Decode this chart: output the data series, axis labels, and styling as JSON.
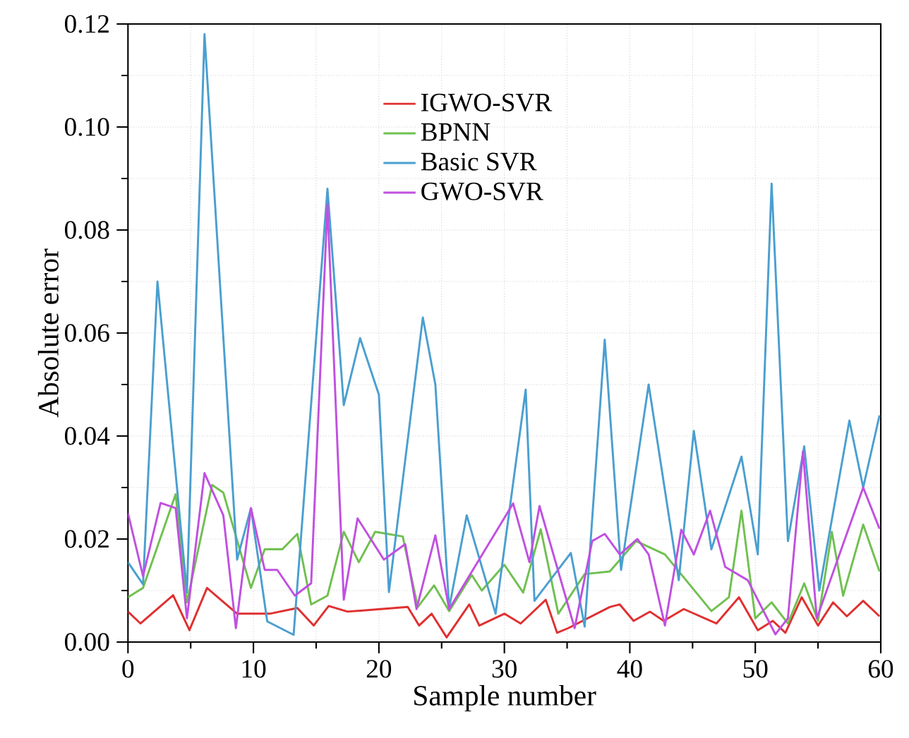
{
  "chart_data": {
    "type": "line",
    "xlabel": "Sample number",
    "ylabel": "Absolute error",
    "xlim": [
      0,
      60
    ],
    "xticks": [
      0,
      10,
      20,
      30,
      40,
      50,
      60
    ],
    "ylim": [
      0,
      0.12
    ],
    "yticks": [
      {
        "value": 0,
        "label": "0.00"
      },
      {
        "value": 0.02,
        "label": "0.02"
      },
      {
        "value": 0.04,
        "label": "0.04"
      },
      {
        "value": 0.06,
        "label": "0.06"
      },
      {
        "value": 0.08,
        "label": "0.08"
      },
      {
        "value": 0.1,
        "label": "0.10"
      },
      {
        "value": 0.12,
        "label": "0.12"
      }
    ],
    "grid": true,
    "legend": "top",
    "marker": "none",
    "line_style": "solid",
    "series": [
      {
        "name": "IGWO-SVR",
        "color": "#e03030",
        "x": [
          0,
          1.0,
          3.6,
          4.9,
          6.3,
          8.7,
          11.3,
          13.5,
          14.8,
          16.0,
          17.5,
          22.3,
          23.2,
          24.2,
          25.4,
          27.2,
          28.0,
          30.0,
          31.3,
          33.3,
          34.2,
          35.1,
          38.4,
          39.2,
          40.3,
          41.6,
          42.7,
          44.3,
          46.9,
          48.7,
          50.2,
          51.4,
          52.4,
          53.7,
          55.0,
          56.2,
          57.3,
          58.6,
          59.9
        ],
        "values": [
          0.0059,
          0.0036,
          0.0091,
          0.0023,
          0.0105,
          0.0055,
          0.0055,
          0.0066,
          0.0032,
          0.007,
          0.0059,
          0.0068,
          0.0032,
          0.0055,
          0.0009,
          0.0073,
          0.0032,
          0.0055,
          0.0036,
          0.0082,
          0.0018,
          0.0027,
          0.0068,
          0.0073,
          0.0041,
          0.0059,
          0.0041,
          0.0064,
          0.0036,
          0.0087,
          0.0023,
          0.0041,
          0.0018,
          0.0087,
          0.0032,
          0.0077,
          0.005,
          0.008,
          0.005
        ]
      },
      {
        "name": "BPNN",
        "color": "#70c050",
        "x": [
          0,
          1.2,
          3.8,
          4.7,
          6.7,
          7.6,
          9.8,
          10.9,
          12.3,
          13.5,
          14.6,
          15.9,
          17.2,
          18.4,
          19.7,
          21.9,
          23.1,
          24.4,
          25.6,
          27.4,
          28.2,
          30.0,
          31.5,
          32.9,
          34.3,
          36.4,
          38.4,
          40.5,
          42.8,
          46.5,
          47.9,
          48.9,
          50.0,
          51.3,
          52.6,
          53.9,
          55.0,
          56.1,
          57.0,
          58.6,
          59.9
        ],
        "values": [
          0.0087,
          0.0105,
          0.0287,
          0.0077,
          0.0305,
          0.029,
          0.0105,
          0.018,
          0.018,
          0.021,
          0.0073,
          0.009,
          0.0214,
          0.0155,
          0.0214,
          0.0205,
          0.0068,
          0.011,
          0.006,
          0.013,
          0.01,
          0.015,
          0.0096,
          0.0219,
          0.0055,
          0.0132,
          0.0137,
          0.0196,
          0.017,
          0.006,
          0.0087,
          0.0255,
          0.0046,
          0.0077,
          0.0036,
          0.0114,
          0.0041,
          0.0214,
          0.009,
          0.0228,
          0.0137
        ]
      },
      {
        "name": "Basic SVR",
        "color": "#4a9fd0",
        "x": [
          0,
          1.2,
          2.35,
          4.7,
          6.1,
          8.7,
          9.8,
          11.1,
          13.2,
          15.9,
          17.2,
          18.5,
          20.0,
          20.8,
          23.5,
          24.5,
          25.6,
          27.0,
          29.3,
          31.7,
          32.4,
          35.3,
          36.4,
          38.0,
          39.3,
          41.5,
          43.9,
          45.1,
          46.5,
          48.9,
          50.2,
          51.3,
          52.6,
          53.9,
          55.1,
          57.5,
          58.6,
          59.9
        ],
        "values": [
          0.0155,
          0.0112,
          0.07,
          0.0096,
          0.118,
          0.016,
          0.026,
          0.004,
          0.0014,
          0.088,
          0.046,
          0.059,
          0.048,
          0.0097,
          0.063,
          0.05,
          0.0066,
          0.0246,
          0.0055,
          0.049,
          0.008,
          0.0173,
          0.003,
          0.0587,
          0.014,
          0.05,
          0.012,
          0.041,
          0.018,
          0.036,
          0.017,
          0.089,
          0.0196,
          0.038,
          0.01,
          0.043,
          0.03,
          0.044
        ]
      },
      {
        "name": "GWO-SVR",
        "color": "#c050e0",
        "x": [
          0,
          1.2,
          2.6,
          3.8,
          4.7,
          6.1,
          7.6,
          8.6,
          9.8,
          10.9,
          11.9,
          13.3,
          14.6,
          15.9,
          17.2,
          18.3,
          20.4,
          22.1,
          23.0,
          24.5,
          25.6,
          30.7,
          32.0,
          32.8,
          35.6,
          37.0,
          38.0,
          39.2,
          40.6,
          41.5,
          42.8,
          44.1,
          45.1,
          46.4,
          47.6,
          49.4,
          51.6,
          52.6,
          53.8,
          54.9,
          58.6,
          59.9
        ],
        "values": [
          0.025,
          0.0128,
          0.027,
          0.026,
          0.0046,
          0.0328,
          0.0246,
          0.0027,
          0.026,
          0.014,
          0.014,
          0.009,
          0.0114,
          0.085,
          0.0082,
          0.024,
          0.016,
          0.019,
          0.0064,
          0.0207,
          0.0064,
          0.0269,
          0.0155,
          0.0264,
          0.0027,
          0.0196,
          0.021,
          0.017,
          0.02,
          0.017,
          0.0032,
          0.0218,
          0.017,
          0.0255,
          0.0146,
          0.012,
          0.0015,
          0.0046,
          0.037,
          0.0046,
          0.03,
          0.022
        ]
      }
    ]
  }
}
